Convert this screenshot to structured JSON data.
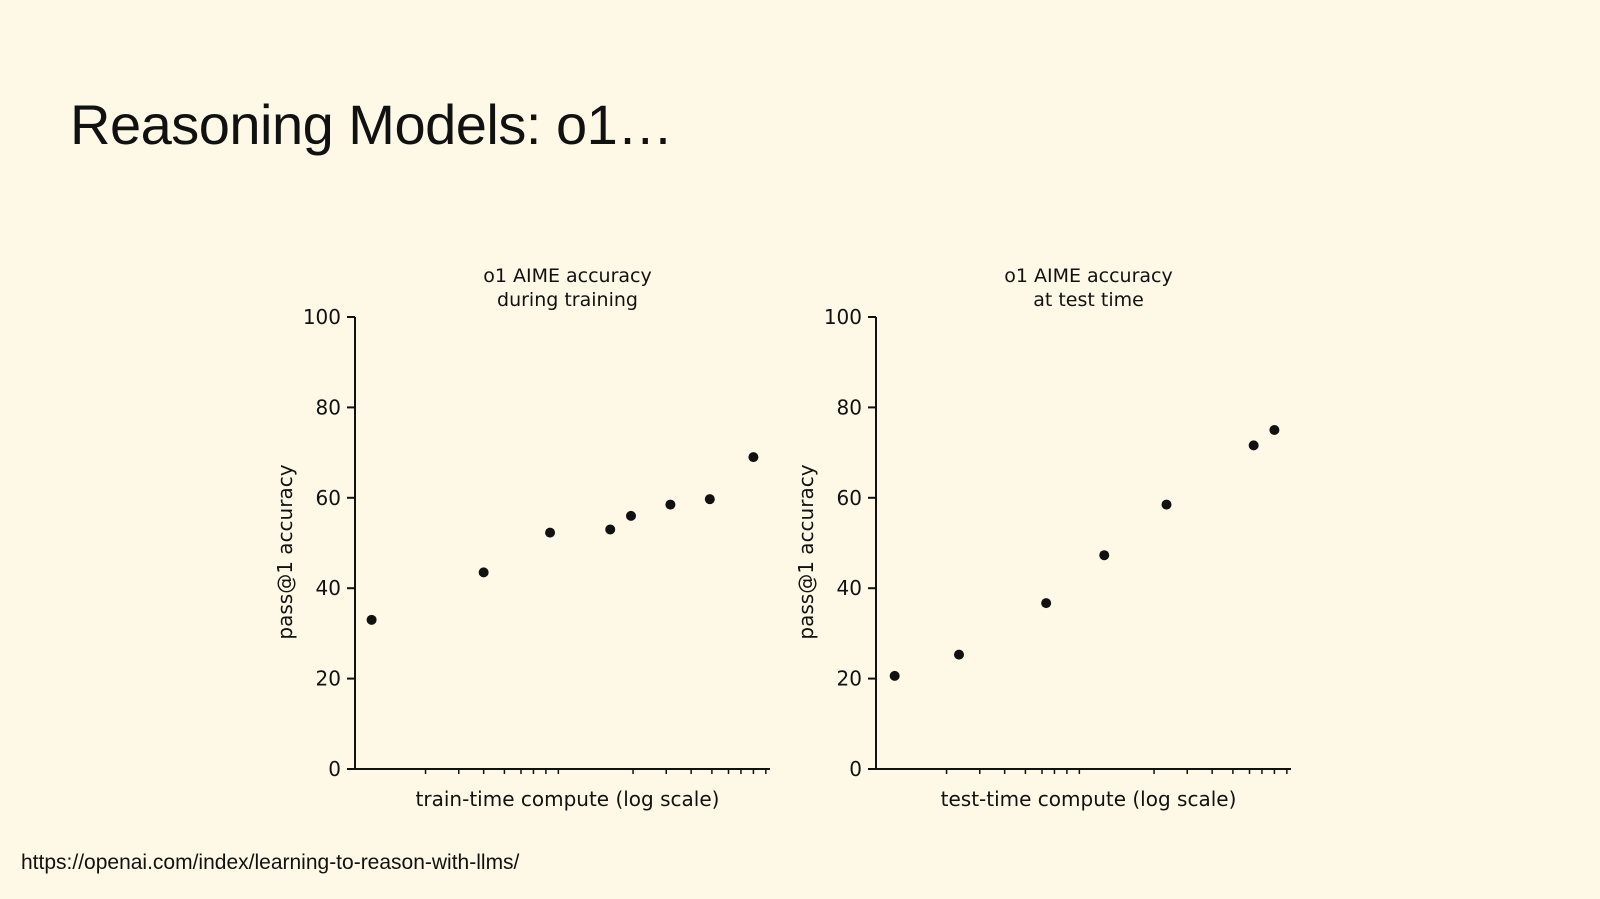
{
  "slide": {
    "title": "Reasoning Models: o1…",
    "source_url": "https://openai.com/index/learning-to-reason-with-llms/"
  },
  "chart_data": [
    {
      "type": "scatter",
      "title": [
        "o1 AIME accuracy",
        "during training"
      ],
      "xlabel": "train-time compute (log scale)",
      "ylabel": "pass@1 accuracy",
      "x_scale": "log",
      "ylim": [
        0,
        100
      ],
      "y_ticks": [
        "0",
        "20",
        "40",
        "60",
        "80",
        "100"
      ],
      "grid": false,
      "point_color": "#111111",
      "points": [
        {
          "x": 0.04,
          "y": 33
        },
        {
          "x": 0.31,
          "y": 43.5
        },
        {
          "x": 0.47,
          "y": 52.3
        },
        {
          "x": 0.615,
          "y": 53
        },
        {
          "x": 0.665,
          "y": 56
        },
        {
          "x": 0.76,
          "y": 58.5
        },
        {
          "x": 0.855,
          "y": 59.7
        },
        {
          "x": 0.96,
          "y": 69
        }
      ]
    },
    {
      "type": "scatter",
      "title": [
        "o1 AIME accuracy",
        "at test time"
      ],
      "xlabel": "test-time compute (log scale)",
      "ylabel": "pass@1 accuracy",
      "x_scale": "log",
      "ylim": [
        0,
        100
      ],
      "y_ticks": [
        "0",
        "20",
        "40",
        "60",
        "80",
        "100"
      ],
      "grid": false,
      "point_color": "#111111",
      "points": [
        {
          "x": 0.045,
          "y": 20.6
        },
        {
          "x": 0.2,
          "y": 25.3
        },
        {
          "x": 0.41,
          "y": 36.7
        },
        {
          "x": 0.55,
          "y": 47.3
        },
        {
          "x": 0.7,
          "y": 58.5
        },
        {
          "x": 0.91,
          "y": 71.6
        },
        {
          "x": 0.96,
          "y": 75
        }
      ]
    }
  ]
}
